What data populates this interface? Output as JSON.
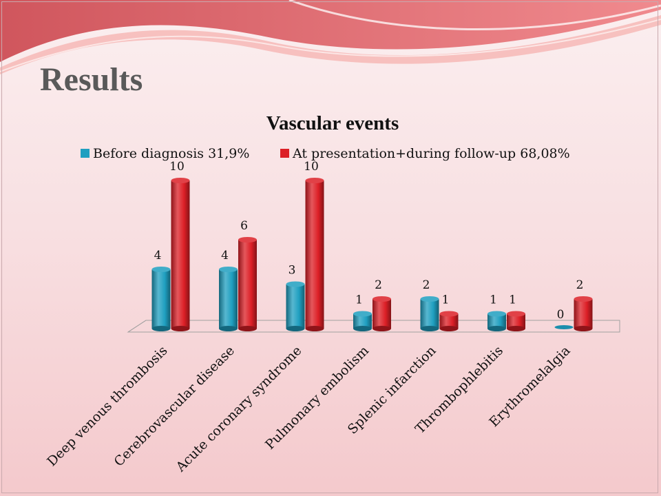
{
  "slide": {
    "title": "Results"
  },
  "colors": {
    "before": "#1f9fc0",
    "after": "#dc1f26",
    "title": "#595959"
  },
  "chart_data": {
    "type": "bar",
    "title": "Vascular events",
    "categories": [
      "Deep venous thrombosis",
      "Cerebrovascular disease",
      "Acute coronary syndrome",
      "Pulmonary embolism",
      "Splenic infarction",
      "Thrombophlebitis",
      "Erythromelalgia"
    ],
    "series": [
      {
        "name": "Before diagnosis 31,9%",
        "values": [
          4,
          4,
          3,
          1,
          2,
          1,
          0
        ]
      },
      {
        "name": "At presentation+during follow-up 68,08%",
        "values": [
          10,
          6,
          10,
          2,
          1,
          1,
          2
        ]
      }
    ],
    "ylim": [
      0,
      10
    ],
    "legend": "top",
    "grid": false,
    "style": "3d-cylinder"
  }
}
